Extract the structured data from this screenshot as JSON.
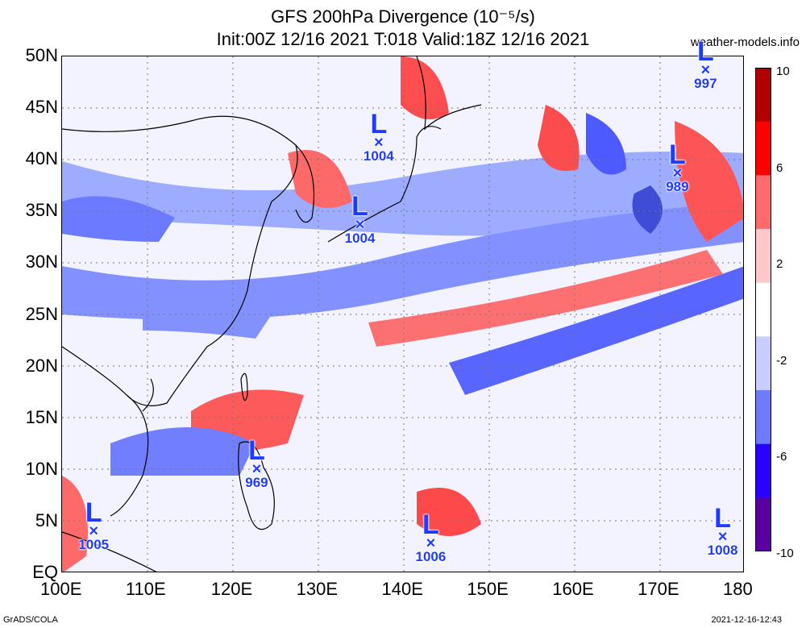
{
  "title_line1": "GFS 200hPa Divergence (10⁻⁵/s)",
  "title_line2": "Init:00Z 12/16 2021 T:018 Valid:18Z 12/16 2021",
  "credit": "weather-models.info",
  "footer_left": "GrADS/COLA",
  "footer_right": "2021-12-16-12:43",
  "lat_labels": [
    "50N",
    "45N",
    "40N",
    "35N",
    "30N",
    "25N",
    "20N",
    "15N",
    "10N",
    "5N",
    "EQ"
  ],
  "lon_labels": [
    "100E",
    "110E",
    "120E",
    "130E",
    "140E",
    "150E",
    "160E",
    "170E",
    "180"
  ],
  "colorbar_labels": [
    "10",
    "6",
    "2",
    "-2",
    "-6",
    "-10"
  ],
  "colorbar_colors": [
    "#5a00a0",
    "#2a00ff",
    "#6f7bff",
    "#c8ccff",
    "#ffffff",
    "#ffc8c8",
    "#ff6a6a",
    "#ff0000",
    "#b00000"
  ],
  "lows": [
    {
      "pressure": "997",
      "lon": 175.5,
      "lat": 48.6
    },
    {
      "pressure": "1004",
      "lon": 137.2,
      "lat": 41.6
    },
    {
      "pressure": "989",
      "lon": 172.2,
      "lat": 38.6
    },
    {
      "pressure": "1004",
      "lon": 135.0,
      "lat": 33.6
    },
    {
      "pressure": "969",
      "lon": 122.9,
      "lat": 10.0
    },
    {
      "pressure": "1005",
      "lon": 103.8,
      "lat": 4.0
    },
    {
      "pressure": "1006",
      "lon": 143.3,
      "lat": 2.8
    },
    {
      "pressure": "1008",
      "lon": 177.5,
      "lat": 3.4
    }
  ]
}
